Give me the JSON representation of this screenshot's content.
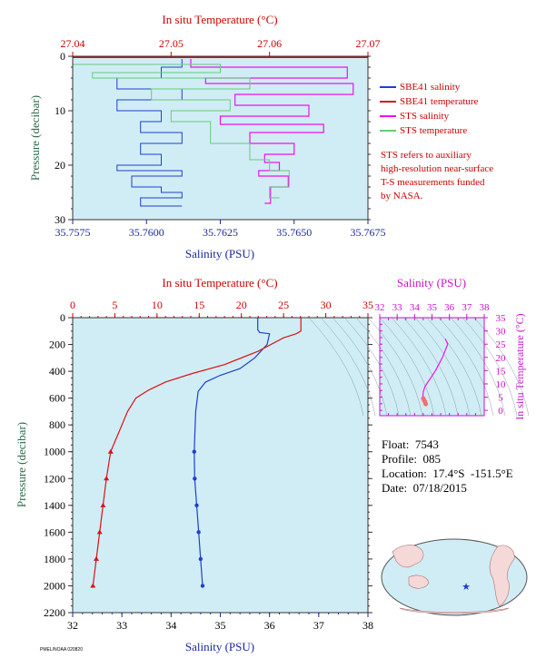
{
  "colors": {
    "background": "#d0edf6",
    "salinity_sbe": "#1f3fcf",
    "temperature_sbe": "#dd1111",
    "salinity_sts": "#ee11ee",
    "temperature_sts": "#66cc77",
    "salinity_sts_pink": "#f4a0a0",
    "axis_red": "#cc0000",
    "axis_navy": "#1a2a9a",
    "axis_magenta": "#cc11cc",
    "axis_green": "#2a6a4a"
  },
  "top_panel": {
    "top_axis_title": "In situ Temperature (°C)",
    "bottom_axis_title": "Salinity (PSU)",
    "y_axis_title": "Pressure (decibar)",
    "top_ticks": [
      "27.04",
      "27.05",
      "27.06",
      "27.07"
    ],
    "bottom_ticks": [
      "35.7575",
      "35.7600",
      "35.7625",
      "35.7650",
      "35.7675"
    ],
    "y_ticks": [
      "0",
      "10",
      "20",
      "30"
    ]
  },
  "bottom_panel": {
    "top_axis_title": "In situ Temperature (°C)",
    "bottom_axis_title": "Salinity (PSU)",
    "y_axis_title": "Pressure (decibar)",
    "top_ticks": [
      "0",
      "5",
      "10",
      "15",
      "20",
      "25",
      "30",
      "35"
    ],
    "bottom_ticks": [
      "32",
      "33",
      "34",
      "35",
      "36",
      "37",
      "38"
    ],
    "y_ticks": [
      "0",
      "200",
      "400",
      "600",
      "800",
      "1000",
      "1200",
      "1400",
      "1600",
      "1800",
      "2000",
      "2200"
    ]
  },
  "ts_panel": {
    "top_axis_title": "Salinity (PSU)",
    "right_axis_title": "In situ Temperature (°C)",
    "top_ticks": [
      "32",
      "33",
      "34",
      "35",
      "36",
      "37",
      "38"
    ],
    "right_ticks": [
      "0",
      "5",
      "10",
      "15",
      "20",
      "25",
      "30",
      "35"
    ]
  },
  "legend": [
    {
      "label": "SBE41 salinity",
      "color": "#1f3fcf"
    },
    {
      "label": "SBE41 temperature",
      "color": "#dd1111"
    },
    {
      "label": "STS salinity",
      "color": "#ee11ee"
    },
    {
      "label": "STS temperature",
      "color": "#66cc77"
    }
  ],
  "note": "STS refers to auxiliary\nhigh-resolution near-surface\nT-S measurements funded\nby NASA.",
  "float_info": {
    "float": "Float:  7543",
    "profile": "Profile:  085",
    "location": "Location:  17.4°S  -151.5°E",
    "date": "Date:  07/18/2015"
  },
  "credit": "PMEL/NOAA  020820",
  "chart_data": [
    {
      "type": "line",
      "title": "",
      "xlabel": "Salinity (PSU)",
      "x2label": "In situ Temperature (°C)",
      "ylabel": "Pressure (decibar)",
      "xlim": [
        35.7575,
        35.7675
      ],
      "x2lim": [
        27.04,
        27.07
      ],
      "ylim": [
        30,
        0
      ],
      "series": [
        {
          "name": "SBE41 salinity",
          "x": [
            35.7612,
            35.7605,
            35.759,
            35.7612,
            35.759,
            35.7605,
            35.7598,
            35.7612,
            35.7598,
            35.7605,
            35.759,
            35.7612,
            35.7595,
            35.7605,
            35.7612,
            35.7598,
            35.7612
          ],
          "y": [
            0.5,
            2,
            4,
            6,
            8,
            10,
            12,
            14,
            16,
            18,
            20,
            21,
            22,
            24,
            25,
            26,
            27.5
          ]
        },
        {
          "name": "SBE41 temperature",
          "x": [
            27.07,
            27.07
          ],
          "y": [
            0.0,
            0.3
          ]
        },
        {
          "name": "STS salinity",
          "x": [
            35.7615,
            35.7668,
            35.762,
            35.767,
            35.763,
            35.7655,
            35.7625,
            35.766,
            35.7635,
            35.765,
            35.764,
            35.7645,
            35.7638,
            35.7648,
            35.7642,
            35.764
          ],
          "y": [
            0.5,
            2,
            4,
            5,
            7,
            9,
            11,
            12.5,
            14,
            16,
            18,
            19.5,
            21,
            22,
            24,
            27
          ]
        },
        {
          "name": "STS temperature",
          "x": [
            27.04,
            27.055,
            27.042,
            27.058,
            27.048,
            27.056,
            27.05,
            27.054,
            27.058,
            27.06,
            27.062,
            27.06,
            27.061
          ],
          "y": [
            0.5,
            1.5,
            3,
            4,
            6,
            8,
            10,
            12,
            16,
            19,
            21,
            24,
            26
          ]
        }
      ]
    },
    {
      "type": "line",
      "title": "",
      "xlabel": "Salinity (PSU)",
      "x2label": "In situ Temperature (°C)",
      "ylabel": "Pressure (decibar)",
      "xlim": [
        32,
        38
      ],
      "x2lim": [
        0,
        35
      ],
      "ylim": [
        2200,
        0
      ],
      "series": [
        {
          "name": "SBE41 salinity",
          "x": [
            35.76,
            35.76,
            35.8,
            36.0,
            35.95,
            35.7,
            35.4,
            35.0,
            34.7,
            34.55,
            34.5,
            34.48,
            34.47,
            34.48,
            34.52,
            34.56,
            34.6,
            34.64
          ],
          "y": [
            0,
            90,
            110,
            120,
            200,
            300,
            380,
            430,
            480,
            550,
            700,
            900,
            1000,
            1200,
            1400,
            1600,
            1800,
            2000
          ]
        },
        {
          "name": "SBE41 temperature",
          "x": [
            27.05,
            27.05,
            26.5,
            25.0,
            22.0,
            18.0,
            14.0,
            11.0,
            9.0,
            7.5,
            6.5,
            5.5,
            4.5,
            4.0,
            3.6,
            3.2,
            2.8,
            2.4
          ],
          "y": [
            0,
            100,
            120,
            150,
            250,
            350,
            420,
            480,
            540,
            600,
            700,
            850,
            1000,
            1200,
            1400,
            1600,
            1800,
            2000
          ]
        }
      ]
    },
    {
      "type": "scatter",
      "title": "",
      "xlabel": "Salinity (PSU)",
      "ylabel": "In situ Temperature (°C)",
      "xlim": [
        32,
        38
      ],
      "ylim": [
        -2,
        35
      ],
      "series": [
        {
          "name": "T-S",
          "x": [
            35.76,
            35.9,
            35.6,
            35.2,
            34.8,
            34.6,
            34.5,
            34.48,
            34.5,
            34.55,
            34.6,
            34.64
          ],
          "y": [
            27.05,
            25,
            20,
            15,
            11,
            9,
            7,
            5.5,
            4.5,
            3.8,
            3.2,
            2.4
          ]
        }
      ]
    }
  ]
}
